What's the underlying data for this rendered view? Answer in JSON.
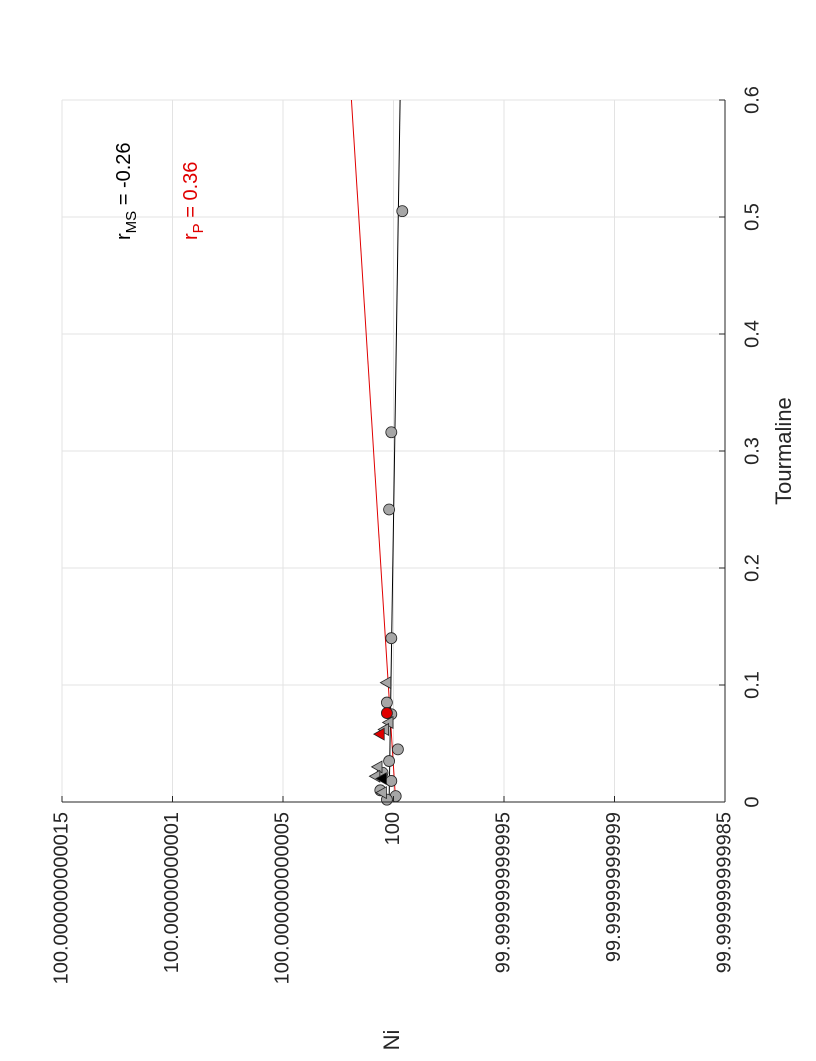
{
  "chart_data": {
    "type": "scatter",
    "xlabel": "Tourmaline",
    "ylabel": "Ni",
    "xlim": [
      0,
      0.6
    ],
    "x_ticks": [
      "0",
      "0.1",
      "0.2",
      "0.3",
      "0.4",
      "0.5",
      "0.6"
    ],
    "y_ticks": [
      "100.000000000015",
      "100.00000000001",
      "100.000000000005",
      "100",
      "99.999999999995",
      "99.99999999999",
      "99.999999999985"
    ],
    "grid": true,
    "orientation": "rotated 90 degrees counter-clockwise",
    "annotations": [
      {
        "label": "r",
        "subscript": "MS",
        "value": " = -0.26",
        "color": "#000000"
      },
      {
        "label": "r",
        "subscript": "P",
        "value": " = 0.36",
        "color": "#e00000"
      }
    ],
    "series": [
      {
        "marker": "circle",
        "color": "#a6a6a6",
        "points": [
          {
            "x": 0.505,
            "y": 99.9999999999996
          },
          {
            "x": 0.316,
            "y": 100.0000000000001
          },
          {
            "x": 0.25,
            "y": 100.0000000000002
          },
          {
            "x": 0.14,
            "y": 100.0000000000001
          },
          {
            "x": 0.085,
            "y": 100.0000000000003
          },
          {
            "x": 0.075,
            "y": 100.0000000000001
          },
          {
            "x": 0.045,
            "y": 99.9999999999998
          },
          {
            "x": 0.035,
            "y": 100.0000000000002
          },
          {
            "x": 0.025,
            "y": 100.0000000000005
          },
          {
            "x": 0.018,
            "y": 100.0000000000001
          },
          {
            "x": 0.01,
            "y": 100.0000000000006
          },
          {
            "x": 0.005,
            "y": 99.9999999999999
          },
          {
            "x": 0.002,
            "y": 100.0000000000003
          }
        ]
      },
      {
        "marker": "triangle",
        "color": "#a6a6a6",
        "points": [
          {
            "x": 0.102,
            "y": 100.0000000000003
          },
          {
            "x": 0.068,
            "y": 100.0000000000002
          },
          {
            "x": 0.062,
            "y": 100.0000000000004
          },
          {
            "x": 0.03,
            "y": 100.0000000000007
          },
          {
            "x": 0.022,
            "y": 100.0000000000008
          },
          {
            "x": 0.008,
            "y": 100.0000000000005
          }
        ]
      },
      {
        "marker": "circle",
        "color": "#e00000",
        "points": [
          {
            "x": 0.076,
            "y": 100.0000000000003
          }
        ]
      },
      {
        "marker": "triangle",
        "color": "#e00000",
        "points": [
          {
            "x": 0.058,
            "y": 100.0000000000006
          }
        ]
      },
      {
        "marker": "triangle",
        "color": "#000000",
        "points": [
          {
            "x": 0.02,
            "y": 100.0000000000005
          }
        ]
      }
    ],
    "fit_lines": [
      {
        "color": "#000000",
        "x": [
          0,
          0.6
        ],
        "y": [
          100.0000000000002,
          99.9999999999997
        ]
      },
      {
        "color": "#e00000",
        "x": [
          0,
          0.6
        ],
        "y": [
          99.9999999999999,
          100.0000000000019
        ]
      }
    ]
  }
}
